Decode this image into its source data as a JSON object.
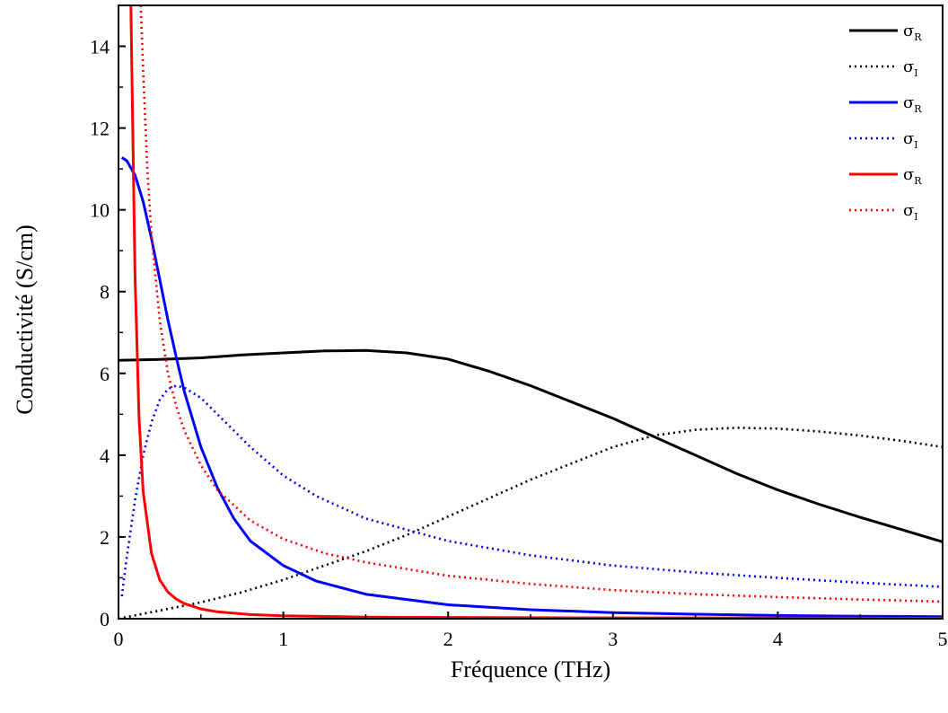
{
  "chart_data": {
    "type": "line",
    "xlabel": "Fréquence (THz)",
    "ylabel": "Conductivité (S/cm)",
    "xlim": [
      0,
      5
    ],
    "ylim": [
      0,
      15
    ],
    "xticks": [
      0,
      1,
      2,
      3,
      4,
      5
    ],
    "yticks": [
      0,
      2,
      4,
      6,
      8,
      10,
      12,
      14
    ],
    "grid": false,
    "legend_position": "top-right",
    "series": [
      {
        "name": "σR",
        "sym": "σ",
        "sub": "R",
        "color": "#000000",
        "style": "solid",
        "x": [
          0,
          0.25,
          0.5,
          0.75,
          1,
          1.25,
          1.5,
          1.75,
          2,
          2.25,
          2.5,
          2.75,
          3,
          3.25,
          3.5,
          3.75,
          4,
          4.25,
          4.5,
          4.75,
          5
        ],
        "y": [
          6.32,
          6.34,
          6.38,
          6.45,
          6.5,
          6.55,
          6.56,
          6.5,
          6.35,
          6.05,
          5.7,
          5.3,
          4.9,
          4.45,
          4.0,
          3.55,
          3.15,
          2.8,
          2.48,
          2.18,
          1.88
        ]
      },
      {
        "name": "σI",
        "sym": "σ",
        "sub": "I",
        "color": "#000000",
        "style": "dotted",
        "x": [
          0,
          0.25,
          0.5,
          0.75,
          1,
          1.25,
          1.5,
          1.75,
          2,
          2.25,
          2.5,
          2.75,
          3,
          3.25,
          3.5,
          3.75,
          4,
          4.25,
          4.5,
          4.75,
          5
        ],
        "y": [
          0,
          0.2,
          0.4,
          0.65,
          0.95,
          1.3,
          1.65,
          2.05,
          2.5,
          2.95,
          3.4,
          3.8,
          4.2,
          4.48,
          4.62,
          4.67,
          4.65,
          4.58,
          4.48,
          4.35,
          4.2
        ]
      },
      {
        "name": "σR",
        "sym": "σ",
        "sub": "R",
        "color": "#0000ff",
        "style": "solid",
        "x": [
          0.02,
          0.05,
          0.1,
          0.15,
          0.2,
          0.25,
          0.3,
          0.35,
          0.4,
          0.5,
          0.6,
          0.7,
          0.8,
          1,
          1.2,
          1.5,
          2,
          2.5,
          3,
          3.5,
          4,
          4.5,
          5
        ],
        "y": [
          11.28,
          11.2,
          10.85,
          10.2,
          9.3,
          8.3,
          7.3,
          6.4,
          5.55,
          4.2,
          3.2,
          2.45,
          1.9,
          1.3,
          0.92,
          0.6,
          0.34,
          0.22,
          0.15,
          0.11,
          0.08,
          0.06,
          0.05
        ]
      },
      {
        "name": "σI",
        "sym": "σ",
        "sub": "I",
        "color": "#0000ff",
        "style": "dotted",
        "x": [
          0.02,
          0.05,
          0.1,
          0.15,
          0.2,
          0.25,
          0.3,
          0.35,
          0.4,
          0.5,
          0.6,
          0.7,
          0.8,
          1,
          1.2,
          1.5,
          2,
          2.5,
          3,
          3.5,
          4,
          4.5,
          5
        ],
        "y": [
          0.55,
          1.5,
          2.9,
          4.0,
          4.8,
          5.35,
          5.62,
          5.7,
          5.65,
          5.4,
          5.0,
          4.6,
          4.2,
          3.5,
          3.0,
          2.45,
          1.9,
          1.55,
          1.3,
          1.13,
          1.0,
          0.88,
          0.78
        ]
      },
      {
        "name": "σR",
        "sym": "σ",
        "sub": "R",
        "color": "#ff0000",
        "style": "solid",
        "x": [
          0.075,
          0.085,
          0.1,
          0.125,
          0.15,
          0.2,
          0.25,
          0.3,
          0.35,
          0.4,
          0.5,
          0.6,
          0.8,
          1,
          1.5,
          2,
          3,
          4,
          5
        ],
        "y": [
          15,
          12.4,
          8.4,
          4.9,
          3.1,
          1.6,
          0.95,
          0.65,
          0.48,
          0.37,
          0.24,
          0.17,
          0.1,
          0.07,
          0.04,
          0.03,
          0.02,
          0.015,
          0.012
        ]
      },
      {
        "name": "σI",
        "sym": "σ",
        "sub": "I",
        "color": "#ff0000",
        "style": "dotted",
        "x": [
          0.135,
          0.15,
          0.175,
          0.2,
          0.25,
          0.3,
          0.35,
          0.4,
          0.5,
          0.6,
          0.8,
          1,
          1.25,
          1.5,
          2,
          2.5,
          3,
          3.5,
          4,
          4.5,
          5
        ],
        "y": [
          15,
          13.4,
          11.0,
          9.4,
          7.3,
          6.0,
          5.2,
          4.6,
          3.75,
          3.15,
          2.4,
          1.95,
          1.6,
          1.38,
          1.05,
          0.85,
          0.7,
          0.6,
          0.53,
          0.47,
          0.42
        ]
      }
    ]
  }
}
